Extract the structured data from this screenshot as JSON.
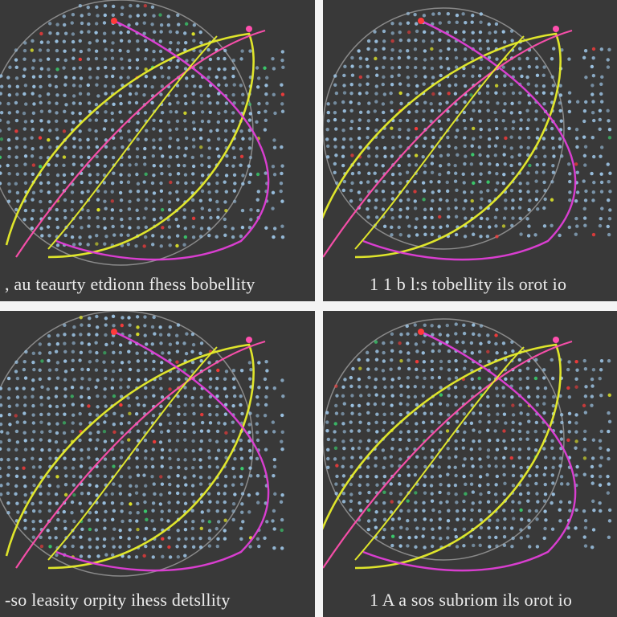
{
  "panels": [
    {
      "caption": ", au teaurty etdionn fhess bobellity"
    },
    {
      "caption": "1  1  b  l:s  tobellity  ils  orot  io"
    },
    {
      "caption": "-so  leasity  orpity  ihess  detsllity"
    },
    {
      "caption": "1  A  a  sos  subriom  ils  orot  io"
    }
  ],
  "colors": {
    "background": "#393939",
    "gutter": "#f4f4f4",
    "circle_outline": "#8a8a8a",
    "curve_yellow": "#e8ee2a",
    "curve_magenta": "#e23ed8",
    "curve_pink": "#ff4fae",
    "dot_main": "#9fc7e8",
    "dot_accent_red": "#ff3b3b",
    "dot_accent_green": "#3bd16f"
  }
}
